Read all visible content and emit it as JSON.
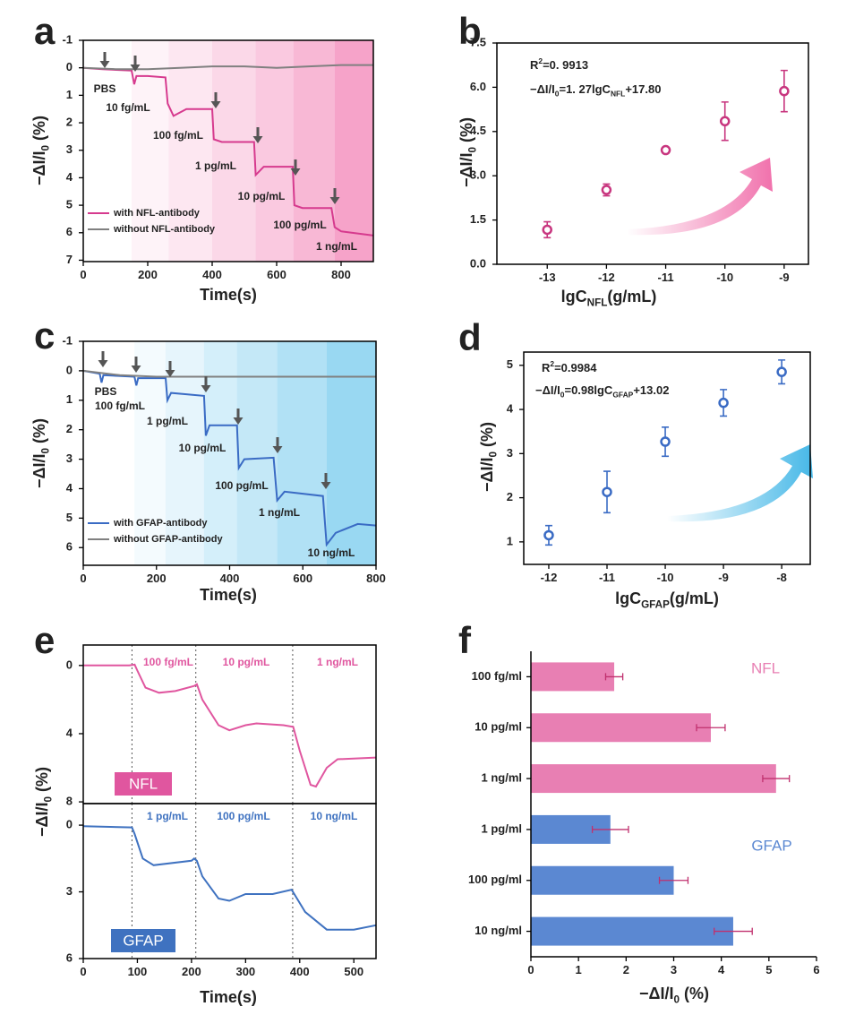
{
  "chart_data": [
    {
      "type": "line",
      "panel": "a",
      "xlabel": [
        {
          "text": "Time(s)"
        }
      ],
      "ylabel": [
        {
          "text": "−ΔI/I"
        },
        {
          "text": "0",
          "sub": true
        },
        {
          "text": " (%)"
        }
      ],
      "xlim": [
        0,
        900
      ],
      "xticks": [
        0,
        200,
        400,
        600,
        800
      ],
      "ylim": [
        -1,
        7.05
      ],
      "yticks": [
        -1,
        0,
        1,
        2,
        3,
        4,
        5,
        6,
        7
      ],
      "y_reversed": true,
      "series": [
        {
          "name": "with NFL-antibody",
          "color": "#d63a8e",
          "x": [
            0,
            60,
            150,
            158,
            165,
            200,
            255,
            262,
            280,
            320,
            400,
            405,
            430,
            530,
            535,
            560,
            650,
            655,
            680,
            770,
            780,
            800,
            900
          ],
          "values": [
            0,
            0.05,
            0.1,
            0.6,
            0.3,
            0.3,
            0.35,
            1.3,
            1.75,
            1.5,
            1.5,
            2.6,
            2.7,
            2.7,
            3.9,
            3.6,
            3.6,
            5.0,
            5.1,
            5.1,
            5.8,
            5.95,
            6.1
          ]
        },
        {
          "name": "without NFL-antibody",
          "color": "#808080",
          "x": [
            0,
            100,
            200,
            300,
            400,
            500,
            600,
            700,
            800,
            900
          ],
          "values": [
            0,
            0.05,
            0.05,
            0,
            -0.05,
            -0.05,
            0,
            -0.05,
            -0.1,
            -0.1
          ]
        }
      ],
      "annotations": [
        "PBS",
        "10 fg/mL",
        "100 fg/mL",
        "1 pg/mL",
        "10 pg/mL",
        "100 pg/mL",
        "1 ng/mL"
      ]
    },
    {
      "type": "scatter",
      "panel": "b",
      "xlabel": [
        {
          "text": "lgC"
        },
        {
          "text": "NFL",
          "sub": true
        },
        {
          "text": "(g/mL)"
        }
      ],
      "ylabel": [
        {
          "text": "−ΔI/I"
        },
        {
          "text": "0",
          "sub": true
        },
        {
          "text": " (%)"
        }
      ],
      "xlim": [
        -13.85,
        -8.59
      ],
      "xticks": [
        -13,
        -12,
        -11,
        -10,
        -9
      ],
      "ylim": [
        0,
        7.5
      ],
      "yticks": [
        {
          "value": 0,
          "label": "0.0"
        },
        1.5,
        {
          "value": 3,
          "label": "3.0"
        },
        4.5,
        {
          "value": 6,
          "label": "6.0"
        },
        7.5
      ],
      "x": [
        -13,
        -12,
        -11,
        -10,
        -9
      ],
      "series": [
        {
          "color": "#c8367f",
          "values": [
            1.17,
            2.52,
            3.87,
            4.85,
            5.87
          ],
          "errors": [
            0.27,
            0.2,
            0.1,
            0.65,
            0.7
          ]
        }
      ],
      "annotations": [
        [
          {
            "text": "R"
          },
          {
            "text": "2",
            "sup": true
          },
          {
            "text": "=0. 9913"
          }
        ],
        [
          {
            "text": "−ΔI/I"
          },
          {
            "text": "0",
            "sub": true
          },
          {
            "text": "=1. 27lgC"
          },
          {
            "text": "NFL",
            "sub": true
          },
          {
            "text": "+17.80"
          }
        ]
      ]
    },
    {
      "type": "line",
      "panel": "c",
      "xlabel": [
        {
          "text": "Time(s)"
        }
      ],
      "ylabel": [
        {
          "text": "−ΔI/I"
        },
        {
          "text": "0",
          "sub": true
        },
        {
          "text": " (%)"
        }
      ],
      "xlim": [
        0,
        800
      ],
      "xticks": [
        0,
        200,
        400,
        600,
        800
      ],
      "ylim": [
        -1,
        6.6
      ],
      "yticks": [
        -1,
        0,
        1,
        2,
        3,
        4,
        5,
        6
      ],
      "y_reversed": true,
      "series": [
        {
          "name": "with GFAP-antibody",
          "color": "#3a6bc4",
          "x": [
            0,
            45,
            50,
            55,
            140,
            145,
            150,
            225,
            230,
            240,
            330,
            335,
            345,
            420,
            425,
            440,
            520,
            530,
            550,
            655,
            665,
            690,
            750,
            800
          ],
          "values": [
            0,
            0.1,
            0.4,
            0.15,
            0.2,
            0.5,
            0.25,
            0.25,
            1.0,
            0.75,
            0.85,
            2.2,
            1.85,
            1.85,
            3.3,
            3.0,
            2.95,
            4.4,
            4.1,
            4.25,
            5.9,
            5.5,
            5.2,
            5.25
          ]
        },
        {
          "name": "without GFAP-antibody",
          "color": "#808080",
          "x": [
            0,
            100,
            200,
            400,
            600,
            800
          ],
          "values": [
            0,
            0.15,
            0.2,
            0.2,
            0.2,
            0.2
          ]
        }
      ],
      "annotations": [
        "PBS",
        "100 fg/mL",
        "1 pg/mL",
        "10 pg/mL",
        "100 pg/mL",
        "1 ng/mL",
        "10 ng/mL"
      ]
    },
    {
      "type": "scatter",
      "panel": "d",
      "xlabel": [
        {
          "text": "lgC"
        },
        {
          "text": "GFAP",
          "sub": true
        },
        {
          "text": "(g/mL)"
        }
      ],
      "ylabel": [
        {
          "text": "−ΔI/I"
        },
        {
          "text": "0",
          "sub": true
        },
        {
          "text": " (%)"
        }
      ],
      "xlim": [
        -12.43,
        -7.51
      ],
      "xticks": [
        -12,
        -11,
        -10,
        -9,
        -8
      ],
      "ylim": [
        0.49,
        5.3
      ],
      "yticks": [
        1,
        2,
        3,
        4,
        5
      ],
      "x": [
        -12,
        -11,
        -10,
        -9,
        -8
      ],
      "series": [
        {
          "color": "#3a6bc4",
          "values": [
            1.15,
            2.13,
            3.27,
            4.15,
            4.85
          ],
          "errors": [
            0.22,
            0.47,
            0.33,
            0.3,
            0.27
          ]
        }
      ],
      "annotations": [
        [
          {
            "text": "R"
          },
          {
            "text": "2",
            "sup": true
          },
          {
            "text": "=0.9984"
          }
        ],
        [
          {
            "text": "−ΔI/I"
          },
          {
            "text": "0",
            "sub": true
          },
          {
            "text": "=0.98lgC"
          },
          {
            "text": "GFAP",
            "sub": true
          },
          {
            "text": "+13.02"
          }
        ]
      ]
    },
    {
      "type": "line",
      "panel": "e",
      "ylabel": [
        {
          "text": "−ΔI/I"
        },
        {
          "text": "0",
          "sub": true
        },
        {
          "text": " (%)"
        }
      ],
      "xlim": [
        0,
        541
      ],
      "ylim": [
        -1.2,
        8.1
      ],
      "yticks": [
        0,
        4,
        8
      ],
      "y_reversed": true,
      "vlines": [
        90,
        208,
        387
      ],
      "series": [
        {
          "name": "NFL",
          "color": "#e0569f",
          "x": [
            0,
            85,
            95,
            100,
            115,
            140,
            170,
            205,
            210,
            220,
            250,
            270,
            300,
            320,
            370,
            388,
            400,
            420,
            430,
            450,
            470,
            541
          ],
          "values": [
            0,
            0,
            -0.05,
            0.3,
            1.3,
            1.6,
            1.5,
            1.2,
            1.1,
            2.0,
            3.5,
            3.8,
            3.5,
            3.4,
            3.5,
            3.6,
            5.0,
            7.0,
            7.1,
            6.0,
            5.5,
            5.4
          ]
        }
      ],
      "annotations": [
        "100 fg/mL",
        "10 pg/mL",
        "1 ng/mL"
      ]
    },
    {
      "type": "line",
      "xlabel": [
        {
          "text": "Time(s)"
        }
      ],
      "xlim": [
        0,
        541
      ],
      "xticks": [
        0,
        100,
        200,
        300,
        400,
        500
      ],
      "ylim": [
        -0.97,
        6
      ],
      "yticks": [
        0,
        3,
        6
      ],
      "y_reversed": true,
      "vlines": [
        90,
        208,
        387
      ],
      "series": [
        {
          "name": "GFAP",
          "color": "#3f72c0",
          "x": [
            0,
            90,
            95,
            110,
            130,
            200,
            205,
            210,
            220,
            250,
            270,
            300,
            350,
            385,
            390,
            410,
            450,
            500,
            541
          ],
          "values": [
            0.05,
            0.1,
            0.4,
            1.5,
            1.8,
            1.6,
            1.5,
            1.6,
            2.3,
            3.3,
            3.4,
            3.1,
            3.1,
            2.9,
            3.1,
            3.9,
            4.7,
            4.7,
            4.5
          ]
        }
      ],
      "annotations": [
        "1 pg/mL",
        "100 pg/mL",
        "10 ng/mL"
      ]
    },
    {
      "type": "barh",
      "panel": "f",
      "xlabel": [
        {
          "text": "−ΔI/I"
        },
        {
          "text": "0",
          "sub": true
        },
        {
          "text": " (%)"
        }
      ],
      "xlim": [
        0,
        6
      ],
      "xticks": [
        0,
        1,
        2,
        3,
        4,
        5,
        6
      ],
      "series": [
        {
          "name": "NFL",
          "color": "#e87fb3",
          "categories": [
            "100 fg/ml",
            "10 pg/ml",
            "1 ng/ml"
          ],
          "values": [
            1.75,
            3.78,
            5.15
          ],
          "errors": [
            0.18,
            0.3,
            0.28
          ]
        },
        {
          "name": "GFAP",
          "color": "#5b88d2",
          "categories": [
            "1 pg/ml",
            "100 pg/ml",
            "10 ng/ml"
          ],
          "values": [
            1.67,
            3.0,
            4.25
          ],
          "errors": [
            0.38,
            0.3,
            0.4
          ]
        }
      ]
    }
  ]
}
